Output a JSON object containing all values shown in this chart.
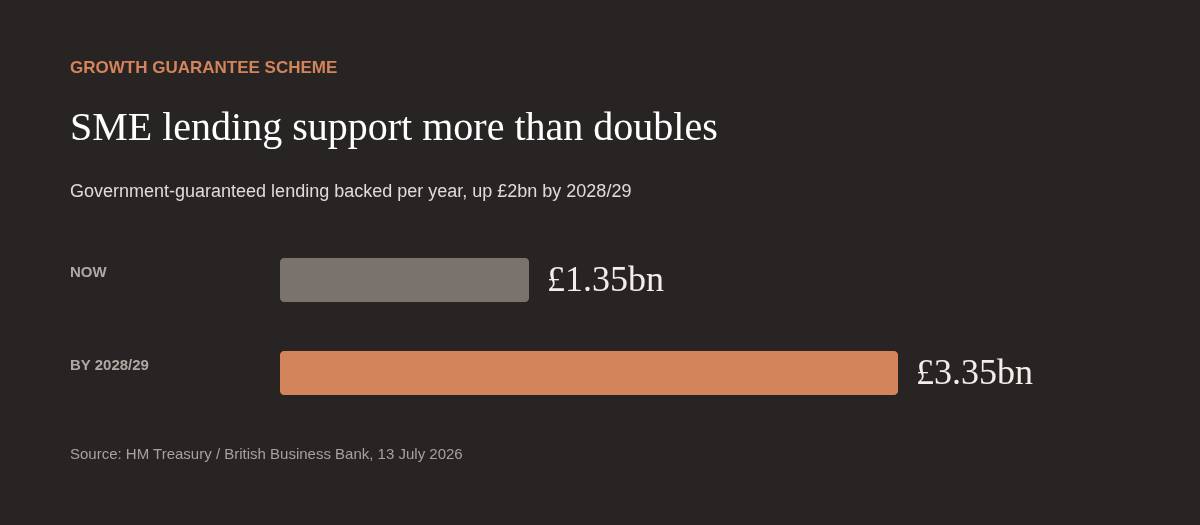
{
  "chart_data": {
    "type": "bar",
    "orientation": "horizontal",
    "title": "SME lending support more than doubles",
    "subtitle": "Government-guaranteed lending backed per year, up £2bn by 2028/29",
    "categories": [
      "NOW",
      "BY 2028/29"
    ],
    "values": [
      1.35,
      3.35
    ],
    "value_labels": [
      "£1.35bn",
      "£3.35bn"
    ],
    "colors": [
      "#7a726d",
      "#d4845a"
    ],
    "annotations": [
      "GROWTH GUARANTEE SCHEME",
      "Source: HM Treasury / British Business Bank, 13 July 2026"
    ]
  }
}
